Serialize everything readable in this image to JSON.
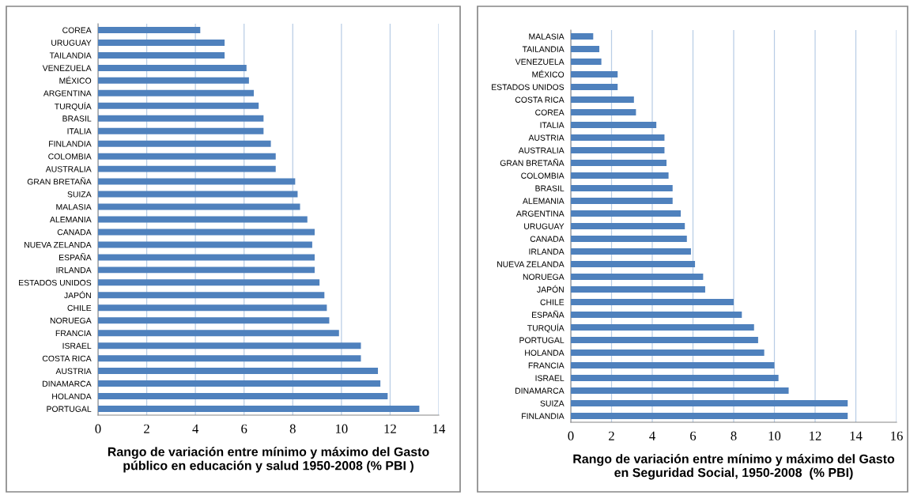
{
  "chart_data": [
    {
      "type": "bar",
      "orientation": "horizontal",
      "xlabel": "Rango de variación entre mínimo y máximo del Gasto público en educación y salud 1950-2008 (% PBI )",
      "color": "#4f81bd",
      "grid": "x",
      "xlim": [
        0,
        14
      ],
      "xticks": [
        0,
        2,
        4,
        6,
        8,
        10,
        12,
        14
      ],
      "categories": [
        "COREA",
        "URUGUAY",
        "TAILANDIA",
        "VENEZUELA",
        "MÉXICO",
        "ARGENTINA",
        "TURQUÍA",
        "BRASIL",
        "ITALIA",
        "FINLANDIA",
        "COLOMBIA",
        "AUSTRALIA",
        "GRAN BRETAÑA",
        "SUIZA",
        "MALASIA",
        "ALEMANIA",
        "CANADA",
        "NUEVA ZELANDA",
        "ESPAÑA",
        "IRLANDA",
        "ESTADOS UNIDOS",
        "JAPÓN",
        "CHILE",
        "NORUEGA",
        "FRANCIA",
        "ISRAEL",
        "COSTA RICA",
        "AUSTRIA",
        "DINAMARCA",
        "HOLANDA",
        "PORTUGAL"
      ],
      "values": [
        4.2,
        5.2,
        5.2,
        6.1,
        6.2,
        6.4,
        6.6,
        6.8,
        6.8,
        7.1,
        7.3,
        7.3,
        8.1,
        8.2,
        8.3,
        8.6,
        8.9,
        8.8,
        8.9,
        8.9,
        9.1,
        9.3,
        9.4,
        9.5,
        9.9,
        10.8,
        10.8,
        11.5,
        11.6,
        11.9,
        13.2
      ]
    },
    {
      "type": "bar",
      "orientation": "horizontal",
      "xlabel": "Rango de variación entre mínimo y máximo del Gasto en Seguridad Social, 1950-2008  (% PBI)",
      "color": "#4f81bd",
      "grid": "x",
      "xlim": [
        0,
        16
      ],
      "xticks": [
        0,
        2,
        4,
        6,
        8,
        10,
        12,
        14,
        16
      ],
      "categories": [
        "MALASIA",
        "TAILANDIA",
        "VENEZUELA",
        "MÉXICO",
        "ESTADOS UNIDOS",
        "COSTA RICA",
        "COREA",
        "ITALIA",
        "AUSTRIA",
        "AUSTRALIA",
        "GRAN BRETAÑA",
        "COLOMBIA",
        "BRASIL",
        "ALEMANIA",
        "ARGENTINA",
        "URUGUAY",
        "CANADA",
        "IRLANDA",
        "NUEVA ZELANDA",
        "NORUEGA",
        "JAPÓN",
        "CHILE",
        "ESPAÑA",
        "TURQUÍA",
        "PORTUGAL",
        "HOLANDA",
        "FRANCIA",
        "ISRAEL",
        "DINAMARCA",
        "SUIZA",
        "FINLANDIA"
      ],
      "values": [
        1.1,
        1.4,
        1.5,
        2.3,
        2.3,
        3.1,
        3.2,
        4.2,
        4.6,
        4.6,
        4.7,
        4.8,
        5.0,
        5.0,
        5.4,
        5.6,
        5.7,
        5.9,
        6.1,
        6.5,
        6.6,
        8.0,
        8.4,
        9.0,
        9.2,
        9.5,
        10.0,
        10.2,
        10.7,
        13.6,
        13.6
      ]
    }
  ]
}
